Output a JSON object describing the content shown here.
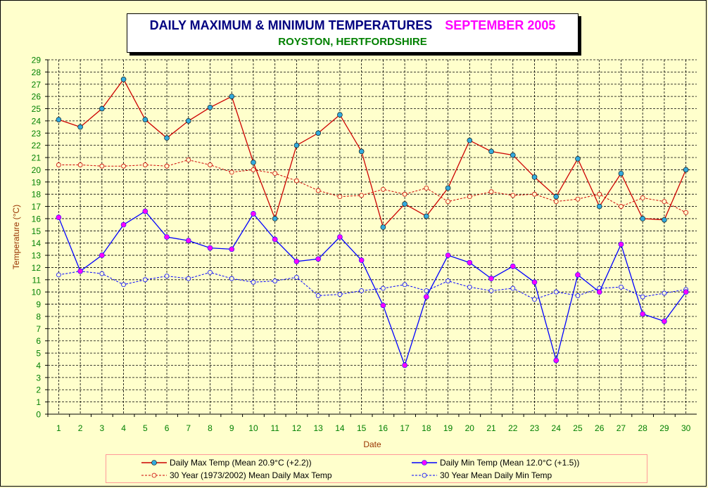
{
  "title": {
    "main": "DAILY MAXIMUM &  MINIMUM  TEMPERATURES",
    "month": "SEPTEMBER 2005",
    "location": "ROYSTON, HERTFORDSHIRE"
  },
  "colors": {
    "background": "#ffffcc",
    "max": "#cc0000",
    "min": "#0000ff",
    "marker_max": "#33aadd",
    "marker_min": "#ff00ff",
    "axis_text": "#008000",
    "axis_title": "#993300"
  },
  "chart_data": {
    "type": "line",
    "xlabel": "Date",
    "ylabel": "Temperature (°C)",
    "ylim": [
      0,
      29
    ],
    "yticks": [
      0,
      1,
      2,
      3,
      4,
      5,
      6,
      7,
      8,
      9,
      10,
      11,
      12,
      13,
      14,
      15,
      16,
      17,
      18,
      19,
      20,
      21,
      22,
      23,
      24,
      25,
      26,
      27,
      28,
      29
    ],
    "x": [
      1,
      2,
      3,
      4,
      5,
      6,
      7,
      8,
      9,
      10,
      11,
      12,
      13,
      14,
      15,
      16,
      17,
      18,
      19,
      20,
      21,
      22,
      23,
      24,
      25,
      26,
      27,
      28,
      29,
      30
    ],
    "grid": true,
    "legend_position": "bottom",
    "series": [
      {
        "name": "Daily Max Temp (Mean 20.9°C (+2.2))",
        "style": "solid",
        "color": "#cc0000",
        "marker": "#33aadd",
        "values": [
          24.1,
          23.5,
          25.0,
          27.4,
          24.1,
          22.6,
          24.0,
          25.1,
          26.0,
          20.6,
          16.0,
          22.0,
          23.0,
          24.5,
          21.5,
          15.3,
          17.2,
          16.2,
          18.5,
          22.4,
          21.5,
          21.2,
          19.4,
          17.8,
          20.9,
          17.0,
          19.7,
          16.0,
          15.9,
          20.0
        ]
      },
      {
        "name": "Daily Min Temp (Mean 12.0°C (+1.5))",
        "style": "solid",
        "color": "#0000ff",
        "marker": "#ff00ff",
        "values": [
          16.1,
          11.7,
          13.0,
          15.5,
          16.6,
          14.5,
          14.2,
          13.6,
          13.5,
          16.4,
          14.3,
          12.5,
          12.7,
          14.5,
          12.6,
          8.9,
          4.0,
          9.6,
          13.0,
          12.4,
          11.1,
          12.1,
          10.8,
          4.4,
          11.4,
          10.0,
          13.9,
          8.2,
          7.6,
          10.0
        ]
      },
      {
        "name": "30 Year (1973/2002) Mean Daily Max Temp",
        "style": "dashed",
        "color": "#cc0000",
        "marker": "none",
        "values": [
          20.4,
          20.4,
          20.3,
          20.3,
          20.4,
          20.3,
          20.8,
          20.4,
          19.8,
          20.0,
          19.7,
          19.1,
          18.3,
          17.8,
          17.9,
          18.4,
          18.0,
          18.5,
          17.4,
          17.8,
          18.2,
          17.9,
          18.0,
          17.4,
          17.6,
          18.0,
          17.0,
          17.7,
          17.4,
          16.5
        ]
      },
      {
        "name": "30 Year Mean Daily Min Temp",
        "style": "dashed",
        "color": "#0000ff",
        "marker": "none",
        "values": [
          11.4,
          11.7,
          11.5,
          10.6,
          11.0,
          11.3,
          11.1,
          11.6,
          11.1,
          10.8,
          10.9,
          11.2,
          9.7,
          9.8,
          10.1,
          10.3,
          10.6,
          10.1,
          10.9,
          10.4,
          10.1,
          10.3,
          9.4,
          10.0,
          9.7,
          10.3,
          10.4,
          9.6,
          9.9,
          10.2
        ]
      }
    ]
  }
}
